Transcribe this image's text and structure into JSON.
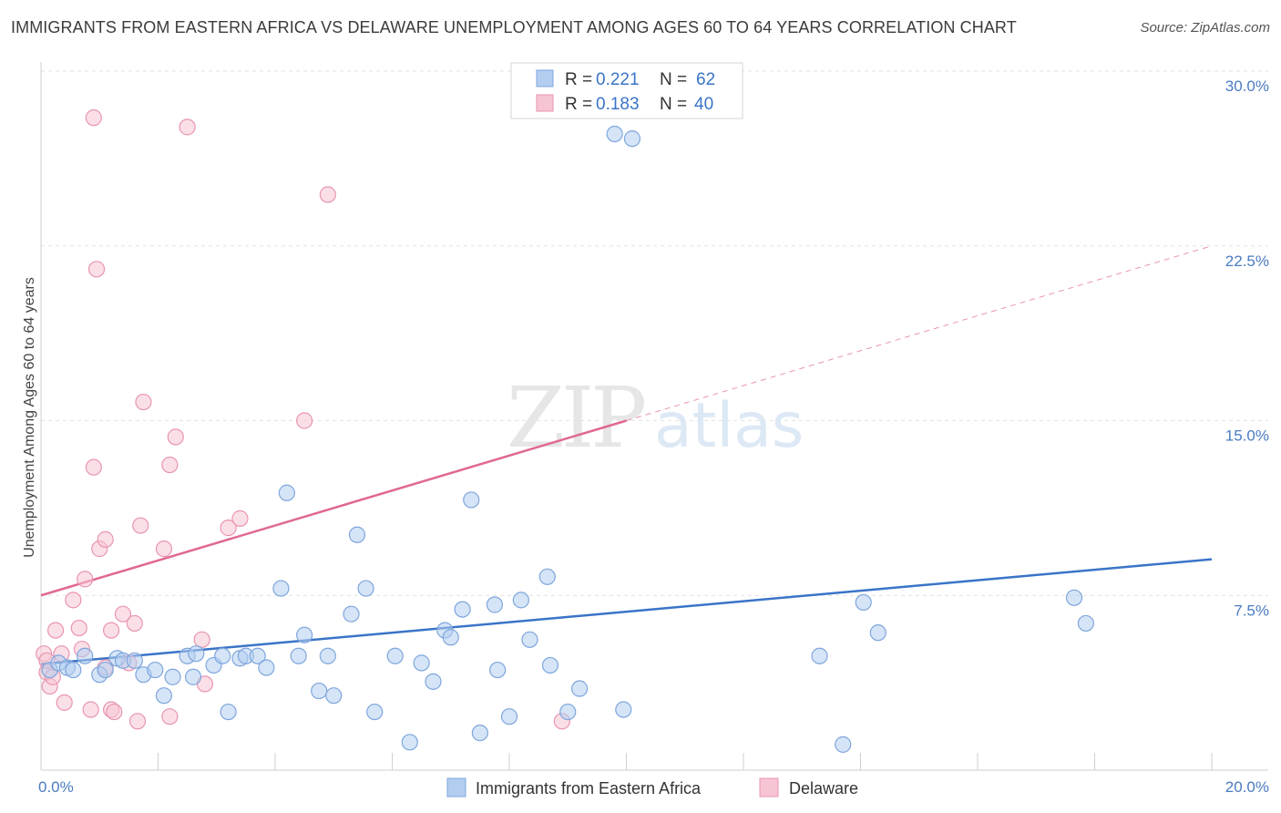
{
  "title": "IMMIGRANTS FROM EASTERN AFRICA VS DELAWARE UNEMPLOYMENT AMONG AGES 60 TO 64 YEARS CORRELATION CHART",
  "source": "Source: ZipAtlas.com",
  "watermark": {
    "zip": "ZIP",
    "atlas": "atlas"
  },
  "colors": {
    "blue_fill": "#b3cdf0",
    "blue_stroke": "#7ea6dc",
    "blue_line": "#3a74c7",
    "pink_fill": "#f7c4d4",
    "pink_stroke": "#e895b0",
    "pink_line": "#e0688f",
    "grid": "#e3e3e3",
    "tick_text": "#4a7cc0"
  },
  "legend": {
    "rows": [
      {
        "r_label": "R = ",
        "r_value": "0.221",
        "n_label": "N = ",
        "n_value": "62"
      },
      {
        "r_label": "R = ",
        "r_value": "0.183",
        "n_label": "N = ",
        "n_value": "40"
      }
    ]
  },
  "chart_data": {
    "type": "scatter",
    "title": "IMMIGRANTS FROM EASTERN AFRICA VS DELAWARE UNEMPLOYMENT AMONG AGES 60 TO 64 YEARS CORRELATION CHART",
    "xlabel": "",
    "ylabel": "Unemployment Among Ages 60 to 64 years",
    "xlim": [
      0,
      20
    ],
    "ylim": [
      0,
      30
    ],
    "x_tick_labels": [
      "0.0%",
      "20.0%"
    ],
    "y_ticks": [
      7.5,
      15.0,
      22.5,
      30.0
    ],
    "y_tick_labels": [
      "7.5%",
      "15.0%",
      "22.5%",
      "30.0%"
    ],
    "grid": true,
    "legend_position": "top-center",
    "series": [
      {
        "name": "Immigrants from Eastern Africa",
        "r": 0.221,
        "n": 62,
        "trend": {
          "x": [
            0,
            20
          ],
          "y": [
            4.55,
            9.05
          ],
          "dashed_after": null
        },
        "points": [
          [
            0.15,
            4.3
          ],
          [
            0.3,
            4.6
          ],
          [
            0.45,
            4.4
          ],
          [
            0.55,
            4.3
          ],
          [
            0.75,
            4.9
          ],
          [
            1.0,
            4.1
          ],
          [
            1.1,
            4.3
          ],
          [
            1.3,
            4.8
          ],
          [
            1.4,
            4.7
          ],
          [
            1.6,
            4.7
          ],
          [
            1.75,
            4.1
          ],
          [
            1.95,
            4.3
          ],
          [
            2.1,
            3.2
          ],
          [
            2.25,
            4.0
          ],
          [
            2.5,
            4.9
          ],
          [
            2.6,
            4.0
          ],
          [
            2.65,
            5.0
          ],
          [
            2.95,
            4.5
          ],
          [
            3.1,
            4.9
          ],
          [
            3.2,
            2.5
          ],
          [
            3.4,
            4.8
          ],
          [
            3.5,
            4.9
          ],
          [
            3.7,
            4.9
          ],
          [
            3.85,
            4.4
          ],
          [
            4.1,
            7.8
          ],
          [
            4.2,
            11.9
          ],
          [
            4.4,
            4.9
          ],
          [
            4.5,
            5.8
          ],
          [
            4.75,
            3.4
          ],
          [
            4.9,
            4.9
          ],
          [
            5.0,
            3.2
          ],
          [
            5.3,
            6.7
          ],
          [
            5.4,
            10.1
          ],
          [
            5.55,
            7.8
          ],
          [
            5.7,
            2.5
          ],
          [
            6.05,
            4.9
          ],
          [
            6.3,
            1.2
          ],
          [
            6.5,
            4.6
          ],
          [
            6.7,
            3.8
          ],
          [
            6.9,
            6.0
          ],
          [
            7.0,
            5.7
          ],
          [
            7.2,
            6.9
          ],
          [
            7.35,
            11.6
          ],
          [
            7.5,
            1.6
          ],
          [
            7.75,
            7.1
          ],
          [
            7.8,
            4.3
          ],
          [
            8.0,
            2.3
          ],
          [
            8.2,
            7.3
          ],
          [
            8.35,
            5.6
          ],
          [
            8.65,
            8.3
          ],
          [
            8.7,
            4.5
          ],
          [
            9.0,
            2.5
          ],
          [
            9.2,
            3.5
          ],
          [
            9.8,
            27.3
          ],
          [
            9.95,
            2.6
          ],
          [
            10.1,
            27.1
          ],
          [
            13.3,
            4.9
          ],
          [
            13.7,
            1.1
          ],
          [
            14.05,
            7.2
          ],
          [
            14.3,
            5.9
          ],
          [
            17.65,
            7.4
          ],
          [
            17.85,
            6.3
          ]
        ]
      },
      {
        "name": "Delaware",
        "r": 0.183,
        "n": 40,
        "trend": {
          "x": [
            0,
            20
          ],
          "y": [
            7.5,
            22.5
          ],
          "solid_until_x": 10.0
        },
        "points": [
          [
            0.05,
            5.0
          ],
          [
            0.1,
            4.2
          ],
          [
            0.15,
            3.6
          ],
          [
            0.2,
            4.0
          ],
          [
            0.25,
            6.0
          ],
          [
            0.35,
            5.0
          ],
          [
            0.4,
            2.9
          ],
          [
            0.55,
            7.3
          ],
          [
            0.65,
            6.1
          ],
          [
            0.7,
            5.2
          ],
          [
            0.75,
            8.2
          ],
          [
            0.85,
            2.6
          ],
          [
            0.9,
            13.0
          ],
          [
            0.9,
            28.0
          ],
          [
            0.95,
            21.5
          ],
          [
            1.0,
            9.5
          ],
          [
            1.1,
            4.4
          ],
          [
            1.1,
            9.9
          ],
          [
            1.2,
            2.6
          ],
          [
            1.2,
            6.0
          ],
          [
            1.25,
            2.5
          ],
          [
            1.4,
            6.7
          ],
          [
            1.5,
            4.6
          ],
          [
            1.6,
            6.3
          ],
          [
            1.65,
            2.1
          ],
          [
            1.7,
            10.5
          ],
          [
            1.75,
            15.8
          ],
          [
            2.1,
            9.5
          ],
          [
            2.2,
            13.1
          ],
          [
            2.2,
            2.3
          ],
          [
            2.3,
            14.3
          ],
          [
            2.5,
            27.6
          ],
          [
            2.75,
            5.6
          ],
          [
            2.8,
            3.7
          ],
          [
            3.2,
            10.4
          ],
          [
            3.4,
            10.8
          ],
          [
            4.5,
            15.0
          ],
          [
            4.9,
            24.7
          ],
          [
            8.9,
            2.1
          ],
          [
            0.1,
            4.7
          ]
        ]
      }
    ]
  }
}
